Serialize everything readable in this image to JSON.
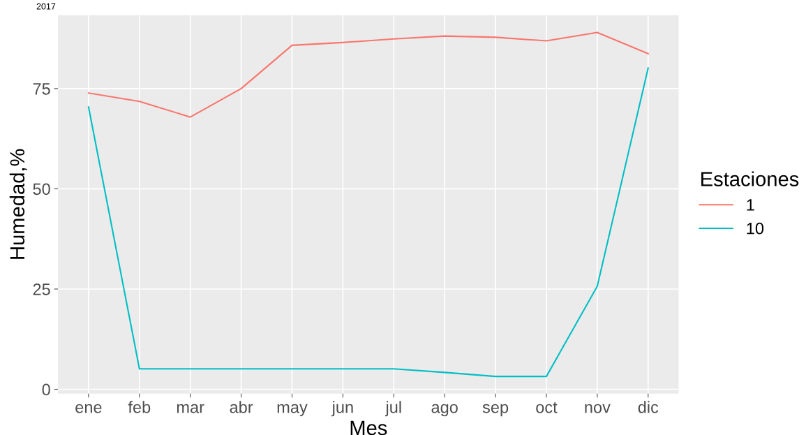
{
  "chart_data": {
    "type": "line",
    "title": "2017",
    "xlabel": "Mes",
    "ylabel": "Humedad,%",
    "legend_title": "Estaciones",
    "categories": [
      "ene",
      "feb",
      "mar",
      "abr",
      "may",
      "jun",
      "jul",
      "ago",
      "sep",
      "oct",
      "nov",
      "dic"
    ],
    "series": [
      {
        "name": "1",
        "color": "#f8766d",
        "values": [
          73.9,
          71.8,
          67.9,
          75,
          85.8,
          86.5,
          87.4,
          88.1,
          87.8,
          86.9,
          89,
          83.7
        ]
      },
      {
        "name": "10",
        "color": "#00bfc4",
        "values": [
          70.4,
          5.1,
          5.1,
          5.1,
          5.1,
          5.1,
          5.1,
          4.2,
          3.2,
          3.2,
          25.7,
          80.1
        ]
      }
    ],
    "ylim": [
      -1.1,
      93.3
    ],
    "yticks": [
      0,
      25,
      50,
      75
    ],
    "grid": true,
    "legend": "right",
    "marker": "none",
    "line_style": "solid"
  }
}
